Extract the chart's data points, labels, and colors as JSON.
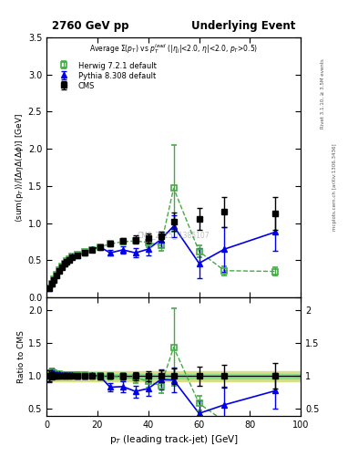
{
  "title_left": "2760 GeV pp",
  "title_right": "Underlying Event",
  "ylabel_main": "$\\langle$sum(p$_T$)$\\rangle$/[$\\Delta\\eta\\Delta(\\Delta\\phi)$] [GeV]",
  "ylabel_ratio": "Ratio to CMS",
  "xlabel": "p$_T$ (leading track-jet) [GeV]",
  "right_label1": "Rivet 3.1.10, ≥ 3.5M events",
  "right_label2": "mcplots.cern.ch [arXiv:1306.3436]",
  "watermark": "CMS_2015_I1385107",
  "ylim_main": [
    0,
    3.5
  ],
  "ylim_ratio": [
    0.4,
    2.2
  ],
  "xlim": [
    0,
    100
  ],
  "cms_x": [
    1,
    2,
    3,
    4,
    5,
    6,
    7,
    8,
    9,
    10,
    12,
    15,
    18,
    21,
    25,
    30,
    35,
    40,
    45,
    50,
    60,
    70,
    90
  ],
  "cms_y": [
    0.12,
    0.18,
    0.24,
    0.3,
    0.36,
    0.41,
    0.45,
    0.48,
    0.51,
    0.54,
    0.57,
    0.6,
    0.64,
    0.68,
    0.72,
    0.76,
    0.78,
    0.8,
    0.82,
    1.02,
    1.06,
    1.15,
    1.13
  ],
  "cms_yerr": [
    0.01,
    0.01,
    0.01,
    0.01,
    0.01,
    0.01,
    0.01,
    0.01,
    0.01,
    0.01,
    0.02,
    0.02,
    0.02,
    0.03,
    0.03,
    0.04,
    0.05,
    0.06,
    0.07,
    0.12,
    0.15,
    0.2,
    0.22
  ],
  "herwig_x": [
    1,
    2,
    3,
    4,
    5,
    6,
    7,
    8,
    9,
    10,
    12,
    15,
    18,
    21,
    25,
    30,
    35,
    40,
    45,
    50,
    60,
    70,
    90
  ],
  "herwig_y": [
    0.12,
    0.19,
    0.25,
    0.31,
    0.37,
    0.42,
    0.46,
    0.49,
    0.52,
    0.55,
    0.58,
    0.61,
    0.64,
    0.68,
    0.72,
    0.75,
    0.76,
    0.74,
    0.7,
    1.47,
    0.62,
    0.36,
    0.35
  ],
  "herwig_yerr": [
    0.005,
    0.005,
    0.005,
    0.005,
    0.005,
    0.005,
    0.005,
    0.005,
    0.01,
    0.01,
    0.01,
    0.01,
    0.015,
    0.02,
    0.02,
    0.03,
    0.04,
    0.06,
    0.07,
    0.58,
    0.08,
    0.06,
    0.05
  ],
  "pythia_x": [
    1,
    2,
    3,
    4,
    5,
    6,
    7,
    8,
    9,
    10,
    12,
    15,
    18,
    21,
    25,
    30,
    35,
    40,
    45,
    50,
    60,
    70,
    90
  ],
  "pythia_y": [
    0.12,
    0.19,
    0.25,
    0.31,
    0.37,
    0.42,
    0.46,
    0.49,
    0.52,
    0.55,
    0.57,
    0.6,
    0.65,
    0.68,
    0.6,
    0.64,
    0.6,
    0.65,
    0.78,
    0.96,
    0.46,
    0.65,
    0.88
  ],
  "pythia_yerr": [
    0.005,
    0.005,
    0.005,
    0.005,
    0.005,
    0.005,
    0.005,
    0.005,
    0.01,
    0.01,
    0.01,
    0.01,
    0.015,
    0.02,
    0.04,
    0.05,
    0.06,
    0.08,
    0.1,
    0.15,
    0.2,
    0.3,
    0.25
  ],
  "cms_color": "black",
  "herwig_color": "#44aa44",
  "pythia_color": "#0000ee",
  "band_inner_color": "#88dd88",
  "band_outer_color": "#dddd88",
  "legend_labels": [
    "CMS",
    "Herwig 7.2.1 default",
    "Pythia 8.308 default"
  ]
}
